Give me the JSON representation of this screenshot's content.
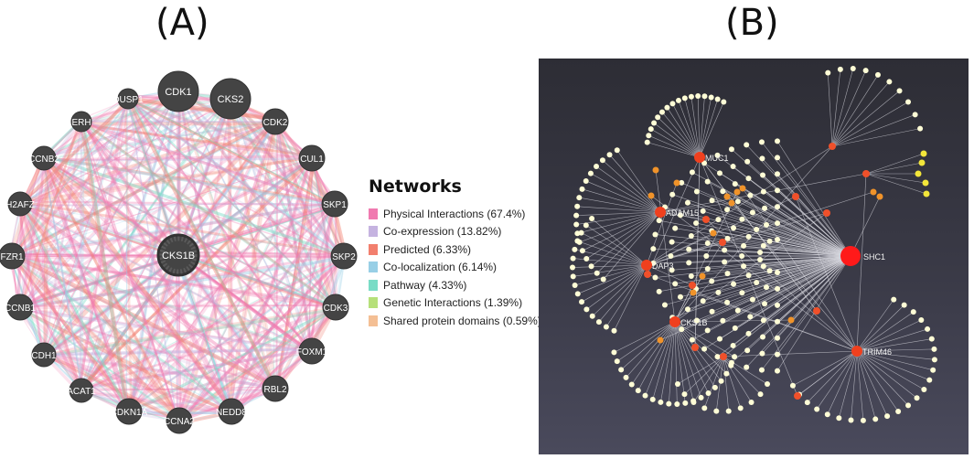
{
  "panels": {
    "a_label": "(A)",
    "b_label": "(B)"
  },
  "network_a": {
    "center": "CKS1B",
    "nodes": [
      "CDK1",
      "CKS2",
      "CDK2",
      "CUL1",
      "SKP1",
      "SKP2",
      "CDK3",
      "FOXM1",
      "RBL2",
      "NEDD8",
      "CCNA2",
      "CDKN1A",
      "ACAT1",
      "CDH1",
      "CCNB1",
      "FZR1",
      "H2AFZ",
      "CCNB2",
      "ERH",
      "DUSP1"
    ]
  },
  "legend": {
    "title": "Networks",
    "items": [
      {
        "label": "Physical Interactions (67.4%)",
        "color": "#f07ab0"
      },
      {
        "label": "Co-expression (13.82%)",
        "color": "#c5b3e0"
      },
      {
        "label": "Predicted (6.33%)",
        "color": "#f27f6e"
      },
      {
        "label": "Co-localization (6.14%)",
        "color": "#98cfe6"
      },
      {
        "label": "Pathway (4.33%)",
        "color": "#79dcc6"
      },
      {
        "label": "Genetic Interactions (1.39%)",
        "color": "#b6e07a"
      },
      {
        "label": "Shared protein domains (0.59%)",
        "color": "#f4bf94"
      }
    ]
  },
  "network_b": {
    "hubs": [
      "MUC1",
      "ADAM15",
      "DAP3",
      "CKS1B",
      "SHC1",
      "TRIM46"
    ]
  }
}
